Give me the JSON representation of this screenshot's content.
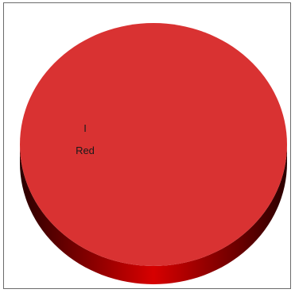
{
  "chart_data": {
    "type": "pie",
    "title": "",
    "style": "3d",
    "slices": [
      {
        "category": "I",
        "label": "Red",
        "value": 1,
        "color": "#d93232"
      }
    ]
  },
  "colors": {
    "top_face": "#d93232",
    "side_highlight": "#d70000",
    "side_dark": "#2a0000",
    "frame_border": "#6b6b6b"
  }
}
